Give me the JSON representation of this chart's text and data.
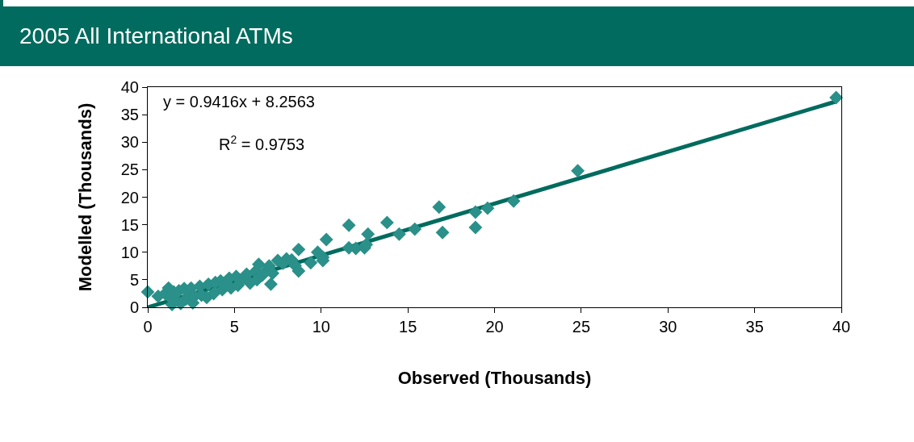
{
  "chart_data": {
    "type": "scatter",
    "title": "2005 All International ATMs",
    "xlabel": "Observed (Thousands)",
    "ylabel": "Modelled (Thousands)",
    "annotations": [
      "y = 0.9416x + 8.2563",
      "R$^{2}$ = 0.9753"
    ],
    "xlim": [
      0,
      40
    ],
    "xticks": [
      0,
      5,
      10,
      15,
      20,
      25,
      30,
      35,
      40
    ],
    "ylim": [
      0,
      40
    ],
    "yticks": [
      0,
      5,
      10,
      15,
      20,
      25,
      30,
      35,
      40
    ],
    "grid": false,
    "marker": "diamond",
    "series": [
      {
        "color": "#2a9089",
        "x": [
          0,
          0.6,
          1.0,
          1.2,
          1.3,
          1.4,
          1.5,
          1.6,
          1.8,
          1.9,
          2.1,
          2.2,
          2.4,
          2.5,
          2.6,
          2.7,
          3.0,
          3.1,
          3.4,
          3.5,
          3.8,
          3.9,
          4.2,
          4.3,
          4.5,
          4.7,
          4.8,
          5.1,
          5.2,
          5.5,
          5.7,
          5.9,
          6.2,
          6.3,
          6.4,
          6.6,
          6.8,
          7.0,
          7.1,
          7.2,
          7.5,
          7.8,
          8.0,
          8.3,
          8.5,
          8.7,
          8.7,
          9.4,
          9.8,
          10.1,
          10.1,
          10.3,
          11.6,
          11.6,
          12.0,
          12.5,
          12.6,
          12.7,
          13.8,
          14.5,
          15.4,
          16.8,
          17.0,
          18.9,
          18.9,
          19.6,
          21.1,
          24.8,
          39.7
        ],
        "values": [
          2.8,
          2.0,
          2.5,
          3.5,
          1.8,
          0.5,
          2.8,
          1.3,
          3.0,
          0.7,
          3.4,
          1.5,
          2.6,
          3.5,
          0.8,
          2.0,
          3.8,
          2.2,
          1.8,
          4.2,
          2.5,
          4.5,
          4.8,
          3.2,
          4.2,
          5.3,
          3.5,
          5.6,
          4.0,
          5.2,
          6.0,
          4.4,
          6.5,
          5.0,
          7.8,
          5.8,
          6.6,
          7.5,
          4.2,
          6.2,
          8.5,
          8.0,
          8.8,
          8.6,
          7.6,
          10.5,
          6.6,
          8.1,
          10.0,
          9.1,
          8.5,
          12.3,
          14.9,
          10.8,
          10.7,
          10.8,
          11.4,
          13.3,
          15.4,
          13.3,
          14.2,
          18.2,
          13.6,
          17.3,
          14.5,
          18.0,
          19.3,
          24.8,
          38.1
        ]
      },
      {
        "type": "line",
        "color": "#006b5e",
        "marker": "none",
        "x": [
          0,
          39.7
        ],
        "values": [
          0,
          37.4
        ]
      }
    ]
  }
}
